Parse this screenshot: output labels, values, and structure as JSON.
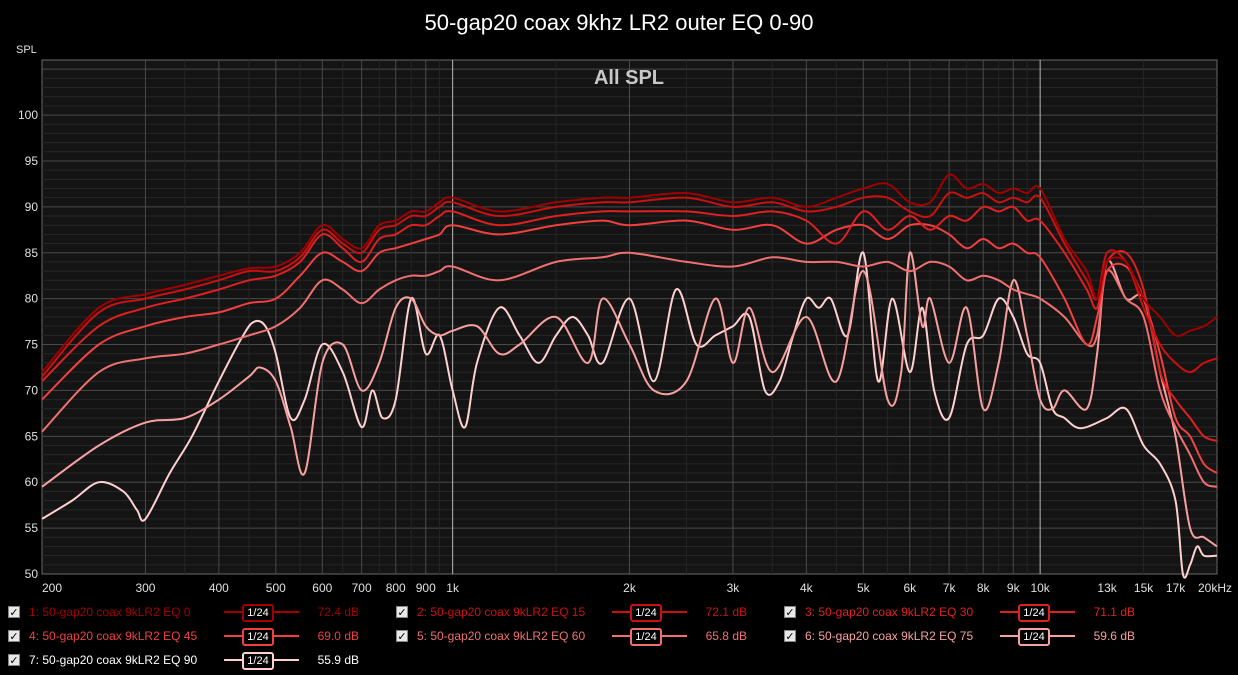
{
  "title": "50-gap20 coax 9khz LR2 outer EQ 0-90",
  "chart_data": {
    "type": "line",
    "title": "50-gap20 coax 9khz LR2 outer EQ 0-90",
    "plot_label": "All SPL",
    "ylabel": "SPL",
    "xlabel": "",
    "x_scale": "log",
    "xlim": [
      200,
      20000
    ],
    "ylim": [
      50,
      106
    ],
    "x_ticks": [
      {
        "v": 200,
        "label": "200"
      },
      {
        "v": 300,
        "label": "300"
      },
      {
        "v": 400,
        "label": "400"
      },
      {
        "v": 500,
        "label": "500"
      },
      {
        "v": 600,
        "label": "600"
      },
      {
        "v": 700,
        "label": "700"
      },
      {
        "v": 800,
        "label": "800"
      },
      {
        "v": 900,
        "label": "900"
      },
      {
        "v": 1000,
        "label": "1k"
      },
      {
        "v": 2000,
        "label": "2k"
      },
      {
        "v": 3000,
        "label": "3k"
      },
      {
        "v": 4000,
        "label": "4k"
      },
      {
        "v": 5000,
        "label": "5k"
      },
      {
        "v": 6000,
        "label": "6k"
      },
      {
        "v": 7000,
        "label": "7k"
      },
      {
        "v": 8000,
        "label": "8k"
      },
      {
        "v": 9000,
        "label": "9k"
      },
      {
        "v": 10000,
        "label": "10k"
      },
      {
        "v": 13000,
        "label": "13k"
      },
      {
        "v": 15000,
        "label": "15k"
      },
      {
        "v": 17000,
        "label": "17k"
      },
      {
        "v": 20000,
        "label": "20kHz"
      }
    ],
    "y_ticks": [
      50,
      55,
      60,
      65,
      70,
      75,
      80,
      85,
      90,
      95,
      100
    ],
    "grid": true,
    "legend_position": "bottom",
    "series": [
      {
        "name": "1: 50-gap20 coax 9kLR2 EQ 0",
        "color": "#a00000",
        "smoothing": "1/24",
        "level": "72.4 dB",
        "x": [
          200,
          250,
          300,
          350,
          400,
          450,
          500,
          550,
          600,
          650,
          700,
          750,
          800,
          850,
          900,
          950,
          1000,
          1200,
          1500,
          1800,
          2000,
          2500,
          3000,
          3500,
          4000,
          4500,
          5000,
          5500,
          6000,
          6500,
          7000,
          7500,
          8000,
          8500,
          9000,
          9500,
          10000,
          11000,
          12000,
          12500,
          13000,
          14000,
          15000,
          16000,
          17000,
          18000,
          19000,
          20000
        ],
        "y": [
          72,
          79,
          80.5,
          81.5,
          82.5,
          83.3,
          83.5,
          85,
          88,
          86.5,
          85.5,
          88,
          88.5,
          89.5,
          89.5,
          90.5,
          91,
          89.5,
          90.5,
          91,
          91,
          91.5,
          90.5,
          91,
          90,
          91,
          92,
          92.5,
          90.5,
          90.5,
          93.5,
          92,
          92.5,
          91.5,
          92,
          91.5,
          92,
          86.5,
          83,
          80,
          84,
          84,
          80,
          78,
          76,
          76.5,
          77,
          78
        ]
      },
      {
        "name": "2: 50-gap20 coax 9kLR2 EQ 15",
        "color": "#cc1010",
        "smoothing": "1/24",
        "level": "72.1 dB",
        "x": [
          200,
          250,
          300,
          350,
          400,
          450,
          500,
          550,
          600,
          650,
          700,
          750,
          800,
          850,
          900,
          950,
          1000,
          1200,
          1500,
          1800,
          2000,
          2500,
          3000,
          3500,
          4000,
          4500,
          5000,
          5500,
          6000,
          6500,
          7000,
          7500,
          8000,
          8500,
          9000,
          9500,
          10000,
          11000,
          12000,
          12500,
          13000,
          14000,
          15000,
          16000,
          17000,
          18000,
          19000,
          20000
        ],
        "y": [
          71.5,
          78.5,
          80,
          81,
          82,
          83,
          83,
          84.5,
          87.5,
          86,
          85,
          87.5,
          88,
          89,
          89,
          90,
          90.5,
          89,
          90,
          90.5,
          90.5,
          91,
          90,
          90.5,
          89.5,
          90,
          91,
          91,
          89.5,
          89,
          91.5,
          91,
          91.5,
          90.5,
          91,
          90.5,
          91,
          86,
          82,
          80,
          85,
          84,
          79,
          75,
          73,
          72,
          73,
          73.5
        ]
      },
      {
        "name": "3: 50-gap20 coax 9kLR2 EQ 30",
        "color": "#e02020",
        "smoothing": "1/24",
        "level": "71.1 dB",
        "x": [
          200,
          250,
          300,
          350,
          400,
          450,
          500,
          550,
          600,
          650,
          700,
          750,
          800,
          850,
          900,
          950,
          1000,
          1200,
          1500,
          1800,
          2000,
          2500,
          3000,
          3500,
          4000,
          4500,
          5000,
          5500,
          6000,
          6500,
          7000,
          7500,
          8000,
          8500,
          9000,
          9500,
          10000,
          11000,
          12000,
          12500,
          13000,
          14000,
          15000,
          16000,
          17000,
          18000,
          19000,
          20000
        ],
        "y": [
          71,
          77,
          79,
          80,
          81,
          82,
          82.5,
          84,
          87,
          85.5,
          84,
          86.5,
          87,
          88,
          88,
          89,
          89.5,
          88,
          89,
          89.5,
          89.5,
          89.5,
          89,
          89.5,
          88.5,
          86,
          89.5,
          87.5,
          89,
          87.5,
          89,
          88.5,
          90,
          89.5,
          90,
          88.5,
          88.5,
          85,
          81,
          79,
          84,
          85,
          81,
          72,
          69,
          67,
          65,
          64.5
        ]
      },
      {
        "name": "4: 50-gap20 coax 9kLR2 EQ 45",
        "color": "#f04040",
        "smoothing": "1/24",
        "level": "69.0 dB",
        "x": [
          200,
          250,
          300,
          350,
          400,
          450,
          500,
          550,
          600,
          650,
          700,
          750,
          800,
          850,
          900,
          950,
          1000,
          1200,
          1500,
          1800,
          2000,
          2500,
          3000,
          3500,
          4000,
          4500,
          5000,
          5500,
          6000,
          6500,
          7000,
          7500,
          8000,
          8500,
          9000,
          9500,
          10000,
          11000,
          12000,
          12500,
          13000,
          14000,
          15000,
          16000,
          17000,
          18000,
          19000,
          20000
        ],
        "y": [
          69,
          75,
          77,
          78,
          78.5,
          79.5,
          80,
          82.5,
          85,
          84,
          83,
          85,
          85.5,
          86,
          86.5,
          87,
          88,
          87,
          88,
          88.5,
          88,
          88.5,
          87.5,
          88,
          86,
          87.5,
          88,
          86.5,
          88,
          88,
          87,
          85.5,
          86.5,
          85.5,
          86,
          85,
          84.5,
          80,
          75,
          78,
          83,
          83.5,
          80,
          74,
          67,
          65,
          62,
          61
        ]
      },
      {
        "name": "5: 50-gap20 coax 9kLR2 EQ 60",
        "color": "#f07070",
        "smoothing": "1/24",
        "level": "65.8 dB",
        "x": [
          200,
          250,
          300,
          350,
          400,
          450,
          500,
          550,
          600,
          650,
          700,
          750,
          800,
          850,
          900,
          950,
          1000,
          1200,
          1500,
          1800,
          2000,
          2500,
          3000,
          3500,
          4000,
          4500,
          5000,
          5500,
          6000,
          6500,
          7000,
          7500,
          8000,
          8500,
          9000,
          9500,
          10000,
          11000,
          12000,
          12500,
          13000,
          14000,
          15000,
          16000,
          17000,
          18000,
          19000,
          20000
        ],
        "y": [
          65.5,
          72,
          73.5,
          74,
          75,
          76,
          77,
          79,
          82,
          81,
          79.5,
          81,
          82,
          82.5,
          82.5,
          83,
          83.5,
          82,
          84,
          84.5,
          85,
          84,
          83.5,
          84.5,
          84,
          84,
          83.5,
          84,
          83,
          84,
          83.5,
          82,
          82.5,
          82,
          81,
          80.5,
          80,
          78,
          75,
          76,
          83,
          80,
          78,
          70,
          66,
          63,
          60,
          59.5
        ]
      },
      {
        "name": "6: 50-gap20 coax 9kLR2 EQ 75",
        "color": "#f8a0a0",
        "smoothing": "1/24",
        "level": "59.6 dB",
        "x": [
          200,
          250,
          300,
          350,
          400,
          450,
          470,
          500,
          530,
          560,
          600,
          650,
          700,
          750,
          800,
          850,
          900,
          950,
          1000,
          1100,
          1200,
          1300,
          1500,
          1700,
          1800,
          2000,
          2200,
          2500,
          2800,
          3000,
          3200,
          3500,
          4000,
          4500,
          5000,
          5500,
          5800,
          6000,
          6300,
          6500,
          7000,
          7500,
          8000,
          8500,
          9000,
          9500,
          10000,
          10500,
          11000,
          12000,
          12500,
          13000,
          14000,
          15000,
          16000,
          17000,
          18000,
          19000,
          20000
        ],
        "y": [
          59.5,
          64,
          66.5,
          67,
          69,
          71.5,
          72.5,
          71,
          66,
          61,
          73,
          75,
          70,
          73,
          79,
          80,
          77,
          76,
          76.5,
          77,
          74,
          75,
          78,
          73,
          80,
          75,
          70,
          71,
          80,
          73,
          79,
          72,
          78,
          71,
          83,
          69,
          72,
          85,
          77,
          80,
          73,
          79,
          68,
          73,
          82,
          76,
          69,
          68,
          70,
          68,
          74,
          84,
          80,
          80,
          72,
          65,
          55,
          54,
          53
        ]
      },
      {
        "name": "7: 50-gap20 coax 9kLR2 EQ 90",
        "color": "#ffd0d0",
        "smoothing": "1/24",
        "level": "55.9 dB",
        "x": [
          200,
          225,
          250,
          275,
          290,
          300,
          330,
          360,
          400,
          440,
          460,
          480,
          500,
          530,
          560,
          600,
          650,
          700,
          730,
          760,
          800,
          850,
          900,
          950,
          1000,
          1050,
          1100,
          1200,
          1300,
          1400,
          1500,
          1600,
          1700,
          1800,
          2000,
          2200,
          2400,
          2600,
          2800,
          3000,
          3200,
          3400,
          3600,
          3800,
          4000,
          4200,
          4400,
          4700,
          5000,
          5300,
          5600,
          6000,
          6300,
          6600,
          7000,
          7500,
          8000,
          8500,
          9000,
          9500,
          10000,
          10500,
          11000,
          11500,
          12000,
          13000,
          14000,
          15000,
          16000,
          17000,
          17500,
          18000,
          18500,
          19000,
          20000
        ],
        "y": [
          56,
          58,
          60,
          59,
          57,
          56,
          61,
          65,
          71,
          76,
          77.5,
          77,
          74,
          67,
          69,
          75,
          72,
          66,
          70,
          67,
          69,
          80,
          74,
          76,
          70,
          66,
          73,
          79,
          76,
          73,
          76,
          78,
          76,
          73,
          80,
          71,
          81,
          75,
          76,
          77,
          78,
          70,
          71,
          76,
          80,
          79,
          80,
          76,
          85,
          71,
          80,
          72,
          79,
          70,
          67,
          75,
          76,
          80,
          78,
          74,
          73,
          68,
          67,
          66,
          66,
          67,
          68,
          64,
          62,
          58,
          50,
          51,
          53,
          52,
          52
        ]
      }
    ]
  }
}
